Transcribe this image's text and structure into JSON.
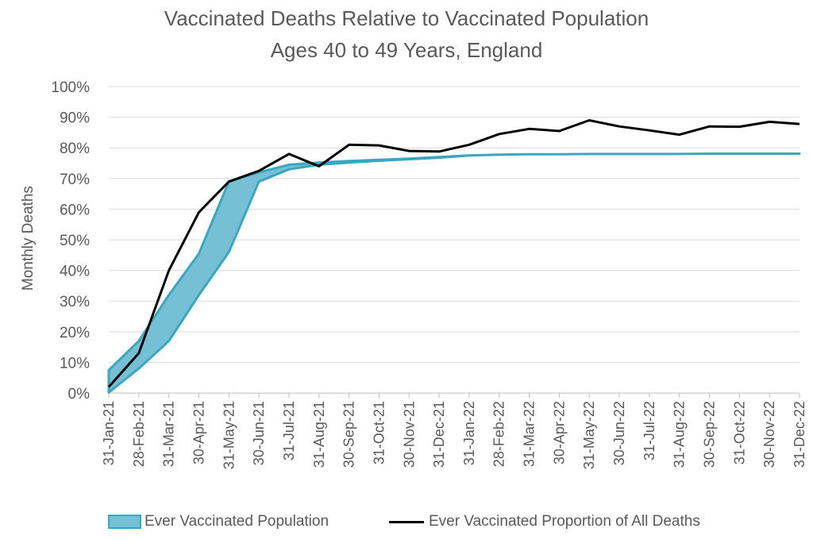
{
  "chart_data": {
    "type": "area",
    "title": "Vaccinated Deaths Relative to Vaccinated Population",
    "subtitle": "Ages 40 to 49 Years, England",
    "xlabel": "",
    "ylabel": "Monthly Deaths",
    "ylim": [
      0,
      1
    ],
    "ytick_labels": [
      "0%",
      "10%",
      "20%",
      "30%",
      "40%",
      "50%",
      "60%",
      "70%",
      "80%",
      "90%",
      "100%"
    ],
    "categories": [
      "31-Jan-21",
      "28-Feb-21",
      "31-Mar-21",
      "30-Apr-21",
      "31-May-21",
      "30-Jun-21",
      "31-Jul-21",
      "31-Aug-21",
      "30-Sep-21",
      "31-Oct-21",
      "30-Nov-21",
      "31-Dec-21",
      "31-Jan-22",
      "28-Feb-22",
      "31-Mar-22",
      "30-Apr-22",
      "31-May-22",
      "30-Jun-22",
      "31-Jul-22",
      "31-Aug-22",
      "30-Sep-22",
      "31-Oct-22",
      "30-Nov-22",
      "31-Dec-22"
    ],
    "grid": true,
    "legend_position": "bottom",
    "series": [
      {
        "name": "Ever Vaccinated Population",
        "kind": "band",
        "color": "#3aa6bf",
        "fill": "#76c0d6",
        "upper": [
          0.075,
          0.17,
          0.32,
          0.455,
          0.69,
          0.72,
          0.745,
          0.752,
          0.757,
          0.761,
          0.765,
          0.77,
          0.775,
          0.778,
          0.779,
          0.779,
          0.78,
          0.78,
          0.78,
          0.78,
          0.781,
          0.781,
          0.781,
          0.781
        ],
        "lower": [
          0.002,
          0.08,
          0.17,
          0.32,
          0.46,
          0.69,
          0.73,
          0.745,
          0.752,
          0.758,
          0.763,
          0.768,
          0.775,
          0.778,
          0.779,
          0.779,
          0.78,
          0.78,
          0.78,
          0.78,
          0.781,
          0.781,
          0.781,
          0.781
        ]
      },
      {
        "name": "Ever Vaccinated Proportion of All Deaths",
        "kind": "line",
        "color": "#000000",
        "values": [
          0.02,
          0.13,
          0.4,
          0.59,
          0.69,
          0.725,
          0.78,
          0.74,
          0.81,
          0.808,
          0.79,
          0.788,
          0.81,
          0.845,
          0.862,
          0.855,
          0.89,
          0.87,
          0.857,
          0.843,
          0.87,
          0.869,
          0.885,
          0.878
        ]
      }
    ]
  }
}
